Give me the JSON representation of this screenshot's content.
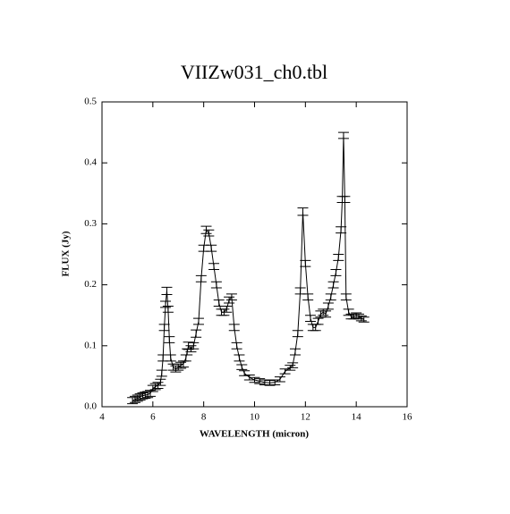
{
  "chart_data": {
    "type": "line",
    "title": "VIIZw031_ch0.tbl",
    "x_label": "WAVELENGTH (micron)",
    "y_label": "FLUX (Jy)",
    "x": [
      5.2,
      5.3,
      5.4,
      5.5,
      5.6,
      5.7,
      5.8,
      5.9,
      6.0,
      6.1,
      6.2,
      6.3,
      6.35,
      6.4,
      6.45,
      6.5,
      6.55,
      6.6,
      6.65,
      6.7,
      6.8,
      6.9,
      7.0,
      7.1,
      7.2,
      7.3,
      7.35,
      7.4,
      7.5,
      7.6,
      7.7,
      7.8,
      7.9,
      8.0,
      8.1,
      8.2,
      8.3,
      8.4,
      8.5,
      8.6,
      8.7,
      8.8,
      8.9,
      9.0,
      9.1,
      9.2,
      9.3,
      9.4,
      9.5,
      9.6,
      9.8,
      10.0,
      10.2,
      10.4,
      10.6,
      10.8,
      11.0,
      11.2,
      11.4,
      11.5,
      11.6,
      11.7,
      11.8,
      11.9,
      12.0,
      12.1,
      12.2,
      12.3,
      12.4,
      12.5,
      12.6,
      12.7,
      12.8,
      12.9,
      13.0,
      13.1,
      13.2,
      13.3,
      13.4,
      13.45,
      13.5,
      13.55,
      13.6,
      13.7,
      13.8,
      13.9,
      14.0,
      14.1,
      14.2,
      14.3
    ],
    "series": [
      {
        "color": "#000000",
        "values": [
          0.01,
          0.012,
          0.014,
          0.016,
          0.018,
          0.019,
          0.02,
          0.022,
          0.03,
          0.033,
          0.035,
          0.04,
          0.055,
          0.08,
          0.13,
          0.168,
          0.19,
          0.16,
          0.11,
          0.08,
          0.065,
          0.062,
          0.065,
          0.068,
          0.07,
          0.08,
          0.09,
          0.1,
          0.095,
          0.1,
          0.12,
          0.14,
          0.21,
          0.26,
          0.29,
          0.285,
          0.26,
          0.23,
          0.2,
          0.17,
          0.155,
          0.155,
          0.16,
          0.175,
          0.18,
          0.13,
          0.1,
          0.08,
          0.065,
          0.055,
          0.048,
          0.044,
          0.042,
          0.04,
          0.039,
          0.04,
          0.045,
          0.058,
          0.064,
          0.068,
          0.09,
          0.12,
          0.19,
          0.32,
          0.235,
          0.18,
          0.145,
          0.13,
          0.13,
          0.14,
          0.152,
          0.155,
          0.152,
          0.165,
          0.18,
          0.2,
          0.22,
          0.245,
          0.29,
          0.34,
          0.445,
          0.34,
          0.18,
          0.155,
          0.148,
          0.148,
          0.15,
          0.148,
          0.145,
          0.143
        ],
        "errors": [
          0.005,
          0.005,
          0.005,
          0.005,
          0.005,
          0.005,
          0.005,
          0.005,
          0.005,
          0.005,
          0.005,
          0.005,
          0.005,
          0.005,
          0.005,
          0.005,
          0.006,
          0.005,
          0.005,
          0.005,
          0.005,
          0.005,
          0.005,
          0.005,
          0.005,
          0.005,
          0.005,
          0.006,
          0.005,
          0.005,
          0.006,
          0.005,
          0.005,
          0.005,
          0.006,
          0.005,
          0.005,
          0.005,
          0.005,
          0.005,
          0.005,
          0.005,
          0.005,
          0.005,
          0.005,
          0.005,
          0.005,
          0.005,
          0.004,
          0.004,
          0.004,
          0.004,
          0.004,
          0.004,
          0.004,
          0.004,
          0.004,
          0.004,
          0.004,
          0.004,
          0.005,
          0.005,
          0.005,
          0.006,
          0.005,
          0.005,
          0.005,
          0.005,
          0.005,
          0.005,
          0.005,
          0.005,
          0.005,
          0.005,
          0.005,
          0.005,
          0.005,
          0.005,
          0.005,
          0.005,
          0.005,
          0.005,
          0.005,
          0.005,
          0.004,
          0.004,
          0.004,
          0.004,
          0.004,
          0.004
        ]
      }
    ],
    "xlim": [
      4,
      16
    ],
    "xticks": [
      4,
      6,
      8,
      10,
      12,
      14,
      16
    ],
    "ylim": [
      0,
      0.5
    ],
    "yticks": [
      {
        "value": 0,
        "label": "0.0"
      },
      0.1,
      0.2,
      0.3,
      0.4,
      0.5
    ]
  }
}
